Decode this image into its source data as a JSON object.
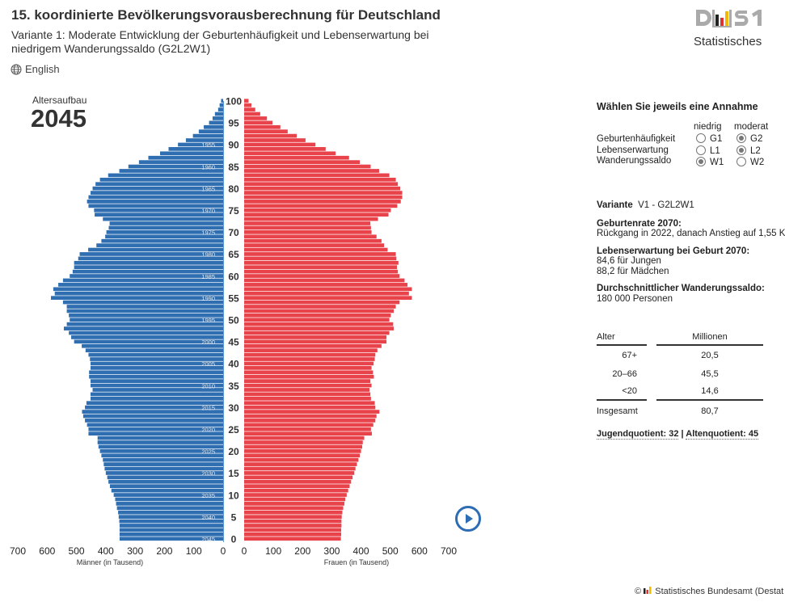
{
  "header": {
    "title": "15. koordinierte Bevölkerungsvorausberechnung für Deutschland",
    "subtitle": "Variante 1: Moderate Entwicklung der Geburtenhäufigkeit und Lebenserwartung bei niedrigem Wanderungssaldo (G2L2W1)",
    "language_link": "English",
    "language_icon": "globe-icon"
  },
  "logo": {
    "mark": "DESTATIS",
    "text": "Statistisches"
  },
  "chart_header": {
    "label": "Altersaufbau",
    "year": "2045"
  },
  "chart_data": {
    "type": "bar",
    "orientation": "horizontal-population-pyramid",
    "title": "Altersaufbau 2045",
    "ages": [
      0,
      1,
      2,
      3,
      4,
      5,
      6,
      7,
      8,
      9,
      10,
      11,
      12,
      13,
      14,
      15,
      16,
      17,
      18,
      19,
      20,
      21,
      22,
      23,
      24,
      25,
      26,
      27,
      28,
      29,
      30,
      31,
      32,
      33,
      34,
      35,
      36,
      37,
      38,
      39,
      40,
      41,
      42,
      43,
      44,
      45,
      46,
      47,
      48,
      49,
      50,
      51,
      52,
      53,
      54,
      55,
      56,
      57,
      58,
      59,
      60,
      61,
      62,
      63,
      64,
      65,
      66,
      67,
      68,
      69,
      70,
      71,
      72,
      73,
      74,
      75,
      76,
      77,
      78,
      79,
      80,
      81,
      82,
      83,
      84,
      85,
      86,
      87,
      88,
      89,
      90,
      91,
      92,
      93,
      94,
      95,
      96,
      97,
      98,
      99,
      100
    ],
    "age_ticks": [
      "0",
      "5",
      "10",
      "15",
      "20",
      "25",
      "30",
      "35",
      "40",
      "45",
      "50",
      "55",
      "60",
      "65",
      "70",
      "75",
      "80",
      "85",
      "90",
      "95",
      "100"
    ],
    "birth_year_labels": [
      "2045",
      "2040",
      "2035",
      "2030",
      "2025",
      "2020",
      "2015",
      "2010",
      "2005",
      "2000",
      "1995",
      "1990",
      "1985",
      "1980",
      "1975",
      "1970",
      "1965",
      "1960",
      "1955"
    ],
    "series": [
      {
        "name": "Männer (in Tausend)",
        "color": "#2f6eb0",
        "values": [
          353,
          353,
          353,
          353,
          354,
          356,
          358,
          362,
          365,
          368,
          373,
          381,
          386,
          391,
          395,
          400,
          404,
          407,
          410,
          415,
          420,
          425,
          428,
          428,
          459,
          459,
          464,
          471,
          477,
          481,
          471,
          466,
          452,
          452,
          445,
          452,
          452,
          457,
          457,
          452,
          452,
          454,
          459,
          469,
          482,
          508,
          518,
          526,
          543,
          533,
          523,
          526,
          533,
          533,
          546,
          587,
          574,
          579,
          562,
          546,
          523,
          513,
          508,
          508,
          494,
          489,
          460,
          432,
          415,
          402,
          398,
          390,
          387,
          410,
          438,
          440,
          459,
          464,
          459,
          452,
          445,
          435,
          420,
          392,
          354,
          323,
          287,
          255,
          215,
          186,
          154,
          127,
          103,
          83,
          66,
          48,
          36,
          28,
          17,
          12,
          7
        ]
      },
      {
        "name": "Frauen (in Tausend)",
        "color": "#e8434b",
        "values": [
          331,
          332,
          332,
          333,
          333,
          334,
          336,
          339,
          343,
          346,
          351,
          356,
          361,
          366,
          371,
          377,
          381,
          386,
          391,
          396,
          400,
          404,
          406,
          411,
          437,
          434,
          442,
          449,
          453,
          463,
          449,
          447,
          434,
          432,
          429,
          436,
          432,
          444,
          441,
          436,
          443,
          447,
          449,
          456,
          470,
          487,
          487,
          497,
          512,
          510,
          497,
          502,
          512,
          519,
          532,
          574,
          564,
          574,
          559,
          549,
          532,
          526,
          523,
          528,
          521,
          519,
          491,
          479,
          470,
          453,
          436,
          434,
          432,
          458,
          494,
          502,
          524,
          536,
          541,
          541,
          534,
          526,
          519,
          497,
          462,
          433,
          396,
          359,
          313,
          279,
          244,
          210,
          180,
          149,
          124,
          97,
          78,
          55,
          38,
          25,
          15
        ]
      }
    ],
    "x_ticks_men": [
      "700",
      "600",
      "500",
      "400",
      "300",
      "200",
      "100",
      "0"
    ],
    "x_ticks_women": [
      "0",
      "100",
      "200",
      "300",
      "400",
      "500",
      "600",
      "700"
    ],
    "xlabel_men": "Männer (in Tausend)",
    "xlabel_women": "Frauen (in Tausend)",
    "xlim": [
      0,
      700
    ],
    "ylim": [
      0,
      100
    ],
    "grid": false
  },
  "controls": {
    "title": "Wählen Sie jeweils eine Annahme",
    "columns": [
      "niedrig",
      "moderat"
    ],
    "rows": [
      {
        "label": "Geburtenhäufigkeit",
        "options": [
          {
            "label": "G1",
            "selected": false
          },
          {
            "label": "G2",
            "selected": true
          }
        ]
      },
      {
        "label": "Lebenserwartung",
        "options": [
          {
            "label": "L1",
            "selected": false
          },
          {
            "label": "L2",
            "selected": true
          }
        ]
      },
      {
        "label": "Wanderungssaldo",
        "options": [
          {
            "label": "W1",
            "selected": true
          },
          {
            "label": "W2",
            "selected": false
          }
        ]
      }
    ]
  },
  "info": {
    "variant_label": "Variante",
    "variant_value": "V1 - G2L2W1",
    "birth_title": "Geburtenrate 2070:",
    "birth_text": "Rückgang in 2022, danach Anstieg auf 1,55 K",
    "life_title": "Lebenserwartung bei Geburt 2070:",
    "life_boys": "84,6 für Jungen",
    "life_girls": "88,2 für Mädchen",
    "migration_title": "Durchschnittlicher Wanderungssaldo:",
    "migration_text": "180 000 Personen"
  },
  "age_table": {
    "headers": [
      "Alter",
      "Millionen"
    ],
    "rows": [
      [
        "67+",
        "20,5"
      ],
      [
        "20–66",
        "45,5"
      ],
      [
        "<20",
        "14,6"
      ]
    ],
    "total": [
      "Insgesamt",
      "80,7"
    ],
    "youth_ratio": "Jugendquotient: 32",
    "separator": "|",
    "old_age_ratio": "Altenquotient: 45"
  },
  "footer": {
    "text": "Statistisches Bundesamt (Destat",
    "copyright": "©"
  }
}
